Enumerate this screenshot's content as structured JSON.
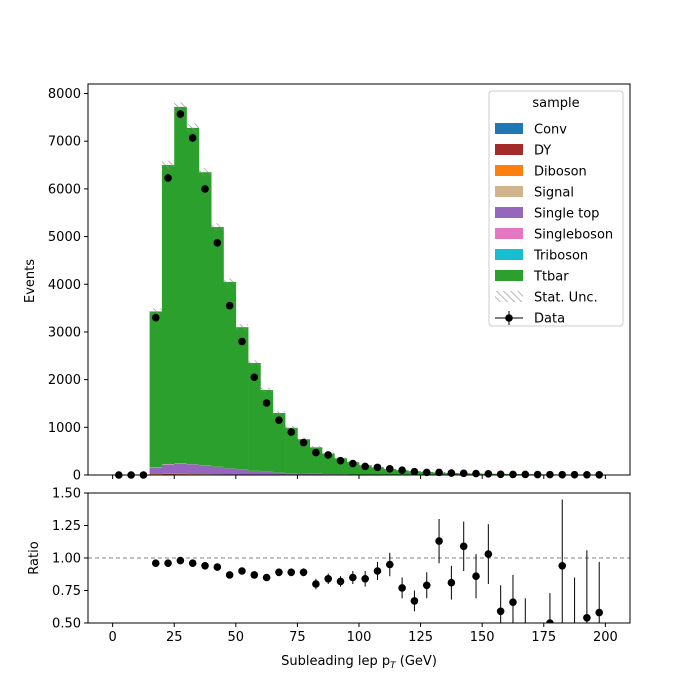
{
  "chart_data": {
    "type": "bar",
    "top": {
      "ylabel": "Events",
      "ylim": [
        0,
        8200
      ],
      "yticks": [
        "0",
        "1000",
        "2000",
        "3000",
        "4000",
        "5000",
        "6000",
        "7000",
        "8000"
      ],
      "stacked": true,
      "bin_width": 5,
      "bin_lows": [
        0,
        5,
        10,
        15,
        20,
        25,
        30,
        35,
        40,
        45,
        50,
        55,
        60,
        65,
        70,
        75,
        80,
        85,
        90,
        95,
        100,
        105,
        110,
        115,
        120,
        125,
        130,
        135,
        140,
        145,
        150,
        155,
        160,
        165,
        170,
        175,
        180,
        185,
        190,
        195
      ],
      "series": [
        {
          "name": "Conv",
          "color": "#1f77b4",
          "values": [
            0,
            0,
            0,
            0,
            0,
            0,
            0,
            0,
            0,
            0,
            0,
            0,
            0,
            0,
            0,
            0,
            0,
            0,
            0,
            0,
            0,
            0,
            0,
            0,
            0,
            0,
            0,
            0,
            0,
            0,
            0,
            0,
            0,
            0,
            0,
            0,
            0,
            0,
            0,
            0
          ]
        },
        {
          "name": "DY",
          "color": "#a52a2a",
          "values": [
            0,
            0,
            0,
            15,
            20,
            18,
            15,
            12,
            10,
            8,
            6,
            5,
            4,
            3,
            3,
            2,
            2,
            1,
            1,
            1,
            1,
            1,
            1,
            0,
            0,
            0,
            0,
            0,
            0,
            0,
            0,
            0,
            0,
            0,
            0,
            0,
            0,
            0,
            0,
            0
          ]
        },
        {
          "name": "Diboson",
          "color": "#ff7f0e",
          "values": [
            0,
            0,
            0,
            5,
            6,
            6,
            5,
            4,
            3,
            3,
            2,
            2,
            2,
            1,
            1,
            1,
            1,
            1,
            1,
            0,
            0,
            0,
            0,
            0,
            0,
            0,
            0,
            0,
            0,
            0,
            0,
            0,
            0,
            0,
            0,
            0,
            0,
            0,
            0,
            0
          ]
        },
        {
          "name": "Signal",
          "color": "#d2b48c",
          "values": [
            0,
            0,
            0,
            0,
            0,
            0,
            0,
            0,
            0,
            0,
            0,
            0,
            0,
            0,
            0,
            0,
            0,
            0,
            0,
            0,
            0,
            0,
            0,
            0,
            0,
            0,
            0,
            0,
            0,
            0,
            0,
            0,
            0,
            0,
            0,
            0,
            0,
            0,
            0,
            0
          ]
        },
        {
          "name": "Single top",
          "color": "#9467bd",
          "values": [
            0,
            0,
            0,
            130,
            190,
            215,
            200,
            180,
            155,
            125,
            100,
            78,
            60,
            45,
            35,
            28,
            22,
            16,
            13,
            10,
            8,
            6,
            5,
            4,
            3,
            3,
            2,
            2,
            2,
            1,
            1,
            1,
            1,
            1,
            1,
            1,
            0,
            0,
            0,
            0
          ]
        },
        {
          "name": "Singleboson",
          "color": "#e377c2",
          "values": [
            0,
            0,
            0,
            10,
            10,
            8,
            6,
            5,
            4,
            3,
            3,
            2,
            2,
            1,
            1,
            1,
            1,
            0,
            0,
            0,
            0,
            0,
            0,
            0,
            0,
            0,
            0,
            0,
            0,
            0,
            0,
            0,
            0,
            0,
            0,
            0,
            0,
            0,
            0,
            0
          ]
        },
        {
          "name": "Triboson",
          "color": "#17becf",
          "values": [
            0,
            0,
            0,
            0,
            0,
            0,
            0,
            0,
            0,
            0,
            0,
            0,
            0,
            0,
            0,
            0,
            0,
            0,
            0,
            0,
            0,
            0,
            0,
            0,
            0,
            0,
            0,
            0,
            0,
            0,
            0,
            0,
            0,
            0,
            0,
            0,
            0,
            0,
            0,
            0
          ]
        },
        {
          "name": "Ttbar",
          "color": "#2ca02c",
          "values": [
            0,
            0,
            0,
            3270,
            6274,
            7473,
            7054,
            6149,
            5028,
            3911,
            2989,
            2263,
            1714,
            1250,
            950,
            718,
            554,
            432,
            335,
            259,
            195,
            153,
            120,
            95,
            77,
            62,
            50,
            42,
            35,
            30,
            25,
            22,
            19,
            16,
            14,
            12,
            11,
            10,
            9,
            8
          ]
        }
      ],
      "data": {
        "name": "Data",
        "values": [
          0,
          0,
          0,
          3300,
          6230,
          7570,
          7070,
          6000,
          4870,
          3550,
          2800,
          2050,
          1510,
          1150,
          900,
          680,
          470,
          420,
          300,
          240,
          180,
          160,
          130,
          100,
          70,
          55,
          55,
          40,
          35,
          30,
          25,
          15,
          12,
          12,
          10,
          8,
          7,
          7,
          5,
          4
        ]
      },
      "legend": {
        "title": "sample",
        "entries": [
          "Conv",
          "DY",
          "Diboson",
          "Signal",
          "Single top",
          "Singleboson",
          "Triboson",
          "Ttbar",
          "Stat. Unc.",
          "Data"
        ],
        "position": "top-right"
      }
    },
    "ratio": {
      "ylabel": "Ratio",
      "ylim": [
        0.5,
        1.5
      ],
      "yticks": [
        "0.50",
        "0.75",
        "1.00",
        "1.25",
        "1.50"
      ],
      "reference_line": 1.0,
      "x": [
        17.5,
        22.5,
        27.5,
        32.5,
        37.5,
        42.5,
        47.5,
        52.5,
        57.5,
        62.5,
        67.5,
        72.5,
        77.5,
        82.5,
        87.5,
        92.5,
        97.5,
        102.5,
        107.5,
        112.5,
        117.5,
        122.5,
        127.5,
        132.5,
        137.5,
        142.5,
        147.5,
        152.5,
        157.5,
        162.5,
        167.5,
        177.5,
        182.5,
        187.5,
        192.5,
        197.5
      ],
      "values": [
        0.96,
        0.96,
        0.98,
        0.96,
        0.94,
        0.93,
        0.87,
        0.9,
        0.87,
        0.85,
        0.89,
        0.89,
        0.89,
        0.8,
        0.84,
        0.82,
        0.85,
        0.84,
        0.9,
        0.95,
        0.77,
        0.67,
        0.79,
        1.13,
        0.81,
        1.09,
        0.86,
        1.03,
        0.59,
        0.66,
        0.44,
        0.5,
        0.94,
        0.4,
        0.54,
        0.58
      ],
      "errors": [
        0.02,
        0.02,
        0.02,
        0.02,
        0.02,
        0.02,
        0.02,
        0.02,
        0.02,
        0.02,
        0.03,
        0.03,
        0.03,
        0.04,
        0.04,
        0.04,
        0.05,
        0.06,
        0.07,
        0.09,
        0.08,
        0.08,
        0.1,
        0.17,
        0.13,
        0.19,
        0.17,
        0.23,
        0.2,
        0.21,
        0.25,
        0.23,
        0.51,
        0.45,
        0.52,
        0.39
      ]
    },
    "xlabel": "Subleading lep p_T (GeV)",
    "xlabel_main": "Subleading lep p",
    "xlabel_sub": "T",
    "xlabel_unit": " (GeV)",
    "xlim": [
      -10,
      210
    ],
    "xticks": [
      "0",
      "25",
      "50",
      "75",
      "100",
      "125",
      "150",
      "175",
      "200"
    ],
    "grid": false
  }
}
